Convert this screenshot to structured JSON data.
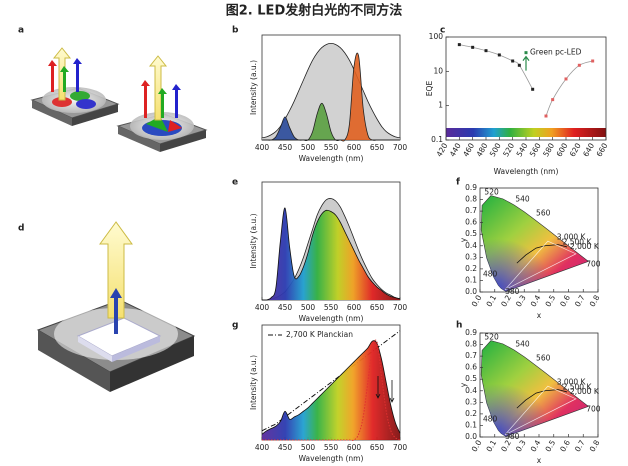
{
  "title": "图2. LED发射白光的不同方法",
  "panel_labels": [
    "a",
    "b",
    "c",
    "d",
    "e",
    "f",
    "g",
    "h"
  ],
  "chart_data": [
    {
      "type": "line",
      "xlabel": "Wavelength (nm)",
      "ylabel": "Intensity (a.u.)",
      "x": [
        400,
        410,
        420,
        430,
        440,
        450,
        460,
        470,
        480,
        490,
        500,
        510,
        520,
        530,
        540,
        550,
        560,
        570,
        580,
        590,
        600,
        610,
        620,
        630,
        640,
        650,
        660,
        670,
        680,
        690,
        700
      ],
      "xlim": [
        400,
        700
      ],
      "xticks": [
        400,
        450,
        500,
        550,
        600,
        650,
        700
      ],
      "ylim": [
        0,
        1
      ],
      "series": [
        {
          "color": "#d2d2d2",
          "values": [
            0.02,
            0.03,
            0.05,
            0.08,
            0.13,
            0.2,
            0.28,
            0.37,
            0.47,
            0.57,
            0.67,
            0.76,
            0.83,
            0.88,
            0.91,
            0.92,
            0.91,
            0.88,
            0.83,
            0.76,
            0.67,
            0.57,
            0.47,
            0.37,
            0.28,
            0.2,
            0.13,
            0.08,
            0.05,
            0.03,
            0.02
          ]
        },
        {
          "color": "#2a4a9a",
          "values": [
            0,
            0,
            0,
            0.03,
            0.12,
            0.22,
            0.12,
            0.03,
            0,
            0,
            0,
            0,
            0,
            0,
            0,
            0,
            0,
            0,
            0,
            0,
            0,
            0,
            0,
            0,
            0,
            0,
            0,
            0,
            0,
            0,
            0
          ]
        },
        {
          "color": "#5aa040",
          "values": [
            0,
            0,
            0,
            0,
            0,
            0,
            0,
            0,
            0,
            0,
            0,
            0.08,
            0.25,
            0.35,
            0.25,
            0.08,
            0,
            0,
            0,
            0,
            0,
            0,
            0,
            0,
            0,
            0,
            0,
            0,
            0,
            0,
            0
          ]
        },
        {
          "color": "#e06020",
          "values": [
            0,
            0,
            0,
            0,
            0,
            0,
            0,
            0,
            0,
            0,
            0,
            0,
            0,
            0,
            0,
            0,
            0,
            0,
            0,
            0.15,
            0.7,
            0.8,
            0.3,
            0.05,
            0,
            0,
            0,
            0,
            0,
            0,
            0
          ]
        }
      ]
    },
    {
      "type": "scatter",
      "xlabel": "Wavelength (nm)",
      "ylabel": "EQE",
      "log_y": true,
      "xlim": [
        420,
        660
      ],
      "xticks": [
        420,
        440,
        460,
        480,
        500,
        520,
        540,
        560,
        580,
        600,
        620,
        640,
        660
      ],
      "ylim": [
        0.1,
        100
      ],
      "yticks": [
        0.1,
        1,
        10,
        100
      ],
      "annotations": [
        "Green pc-LED"
      ],
      "series": [
        {
          "color": "#222222",
          "x": [
            440,
            460,
            480,
            500,
            520,
            530,
            550
          ],
          "values": [
            60,
            50,
            40,
            30,
            20,
            15,
            3
          ]
        },
        {
          "color": "#2a8a4a",
          "x": [
            540
          ],
          "values": [
            35
          ]
        },
        {
          "color": "#e06060",
          "x": [
            570,
            580,
            600,
            620,
            640
          ],
          "values": [
            0.5,
            1.5,
            6,
            15,
            20
          ]
        }
      ]
    },
    {
      "type": "line",
      "xlabel": "Wavelength (nm)",
      "ylabel": "Intensity (a.u.)",
      "x": [
        400,
        410,
        420,
        430,
        440,
        450,
        460,
        470,
        480,
        490,
        500,
        510,
        520,
        530,
        540,
        550,
        560,
        570,
        580,
        590,
        600,
        610,
        620,
        630,
        640,
        650,
        660,
        670,
        680,
        690,
        700
      ],
      "xlim": [
        400,
        700
      ],
      "xticks": [
        400,
        450,
        500,
        550,
        600,
        650,
        700
      ],
      "ylim": [
        0,
        1
      ],
      "series": [
        {
          "color": "#cccccc",
          "values": [
            0,
            0,
            0.01,
            0.02,
            0.04,
            0.07,
            0.12,
            0.18,
            0.26,
            0.36,
            0.48,
            0.6,
            0.72,
            0.8,
            0.85,
            0.86,
            0.84,
            0.79,
            0.71,
            0.62,
            0.52,
            0.42,
            0.33,
            0.25,
            0.18,
            0.13,
            0.09,
            0.06,
            0.04,
            0.02,
            0.01
          ]
        },
        {
          "color": "#111111",
          "fill": "spectrum",
          "values": [
            0,
            0,
            0.02,
            0.1,
            0.5,
            0.78,
            0.45,
            0.2,
            0.2,
            0.28,
            0.4,
            0.55,
            0.66,
            0.73,
            0.76,
            0.75,
            0.72,
            0.66,
            0.58,
            0.5,
            0.42,
            0.34,
            0.27,
            0.2,
            0.15,
            0.11,
            0.08,
            0.05,
            0.03,
            0.02,
            0.01
          ]
        }
      ]
    },
    {
      "type": "chromaticity",
      "xlabel": "x",
      "ylabel": "y",
      "xlim": [
        0,
        0.8
      ],
      "ylim": [
        0,
        0.9
      ],
      "xticks": [
        {
          "value": 0,
          "label": "0.0"
        },
        0.1,
        0.2,
        0.3,
        0.4,
        0.5,
        0.6,
        0.7,
        0.8
      ],
      "yticks": [
        {
          "value": 0,
          "label": "0.0"
        },
        0.1,
        0.2,
        0.3,
        0.4,
        0.5,
        0.6,
        0.7,
        0.8,
        0.9
      ],
      "annotations": [
        "520",
        "540",
        "560",
        "3,000 K",
        "2,500 K",
        "2,000 K",
        "700",
        "480",
        "380"
      ]
    },
    {
      "type": "line",
      "xlabel": "Wavelength (nm)",
      "ylabel": "Intensity (a.u.)",
      "legend": "top-left",
      "x": [
        400,
        410,
        420,
        430,
        440,
        450,
        460,
        470,
        480,
        490,
        500,
        510,
        520,
        530,
        540,
        550,
        560,
        570,
        580,
        590,
        600,
        610,
        620,
        630,
        640,
        650,
        660,
        670,
        680,
        690,
        700
      ],
      "xlim": [
        400,
        700
      ],
      "xticks": [
        400,
        450,
        500,
        550,
        600,
        650,
        700
      ],
      "ylim": [
        0,
        1
      ],
      "series": [
        {
          "name": "2,700 K Planckian",
          "color": "#111111",
          "dash": "dash-dot",
          "values": [
            0.08,
            0.1,
            0.12,
            0.14,
            0.17,
            0.2,
            0.23,
            0.26,
            0.29,
            0.32,
            0.35,
            0.38,
            0.41,
            0.44,
            0.47,
            0.5,
            0.53,
            0.56,
            0.59,
            0.62,
            0.65,
            0.68,
            0.71,
            0.74,
            0.77,
            0.8,
            0.83,
            0.86,
            0.89,
            0.92,
            0.95
          ]
        },
        {
          "color": "#111111",
          "fill": "spectrum",
          "values": [
            0.05,
            0.08,
            0.1,
            0.12,
            0.16,
            0.25,
            0.18,
            0.2,
            0.22,
            0.25,
            0.28,
            0.32,
            0.36,
            0.4,
            0.44,
            0.48,
            0.52,
            0.56,
            0.6,
            0.64,
            0.68,
            0.72,
            0.76,
            0.8,
            0.86,
            0.84,
            0.7,
            0.5,
            0.3,
            0.15,
            0.06
          ]
        },
        {
          "color": "#e03030",
          "dash": "dot",
          "values": [
            0,
            0,
            0,
            0,
            0,
            0,
            0,
            0,
            0,
            0,
            0,
            0,
            0,
            0,
            0,
            0,
            0,
            0,
            0,
            0,
            0,
            0.05,
            0.2,
            0.5,
            0.8,
            0.85,
            0.55,
            0.25,
            0.08,
            0.02,
            0
          ]
        }
      ]
    },
    {
      "type": "chromaticity",
      "xlabel": "x",
      "ylabel": "y",
      "xlim": [
        0,
        0.8
      ],
      "ylim": [
        0,
        0.9
      ],
      "xticks": [
        {
          "value": 0,
          "label": "0.0"
        },
        0.1,
        0.2,
        0.3,
        0.4,
        0.5,
        0.6,
        0.7,
        0.8
      ],
      "yticks": [
        {
          "value": 0,
          "label": "0.0"
        },
        0.1,
        0.2,
        0.3,
        0.4,
        0.5,
        0.6,
        0.7,
        0.8,
        0.9
      ],
      "annotations": [
        "520",
        "540",
        "560",
        "3,000 K",
        "2,500 K",
        "2,000 K",
        "700",
        "480",
        "380"
      ]
    }
  ]
}
